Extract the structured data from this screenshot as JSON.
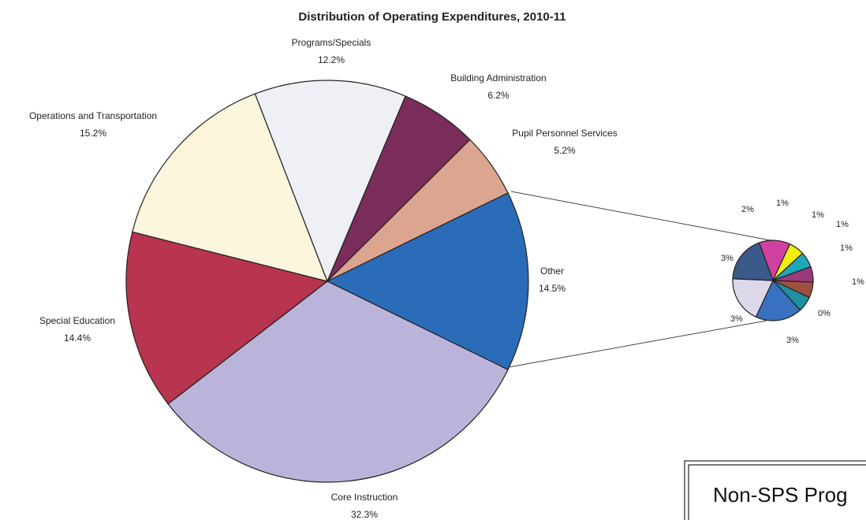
{
  "chart_data": [
    {
      "type": "pie",
      "title": "Distribution of Operating Expenditures, 2010-11",
      "categories": [
        "Other",
        "Core Instruction",
        "Special Education",
        "Operations and Transportation",
        "Programs/Specials",
        "Building Administration",
        "Pupil Personnel Services"
      ],
      "values": [
        14.5,
        32.3,
        14.4,
        15.2,
        12.2,
        6.2,
        5.2
      ],
      "value_labels": [
        "14.5%",
        "32.3%",
        "14.4%",
        "15.2%",
        "12.2%",
        "6.2%",
        "5.2%"
      ],
      "colors": [
        "#2a6cb8",
        "#bab4da",
        "#b8344f",
        "#fbf6dc",
        "#eef0f5",
        "#7a2c5a",
        "#dca58f"
      ]
    },
    {
      "type": "pie",
      "values": [
        2,
        1,
        1,
        1,
        1,
        1,
        0,
        3,
        3,
        3
      ],
      "value_labels": [
        "2%",
        "1%",
        "1%",
        "1%",
        "1%",
        "1%",
        "0%",
        "3%",
        "3%",
        "3%"
      ],
      "colors": [
        "#d040a0",
        "#f4ee10",
        "#20a8b8",
        "#9a3a7a",
        "#a05040",
        "#2090a0",
        "#888888",
        "#3a70c0",
        "#dcd8ea",
        "#3a5a8a"
      ]
    }
  ],
  "box": {
    "text": "Non-SPS Prog"
  }
}
